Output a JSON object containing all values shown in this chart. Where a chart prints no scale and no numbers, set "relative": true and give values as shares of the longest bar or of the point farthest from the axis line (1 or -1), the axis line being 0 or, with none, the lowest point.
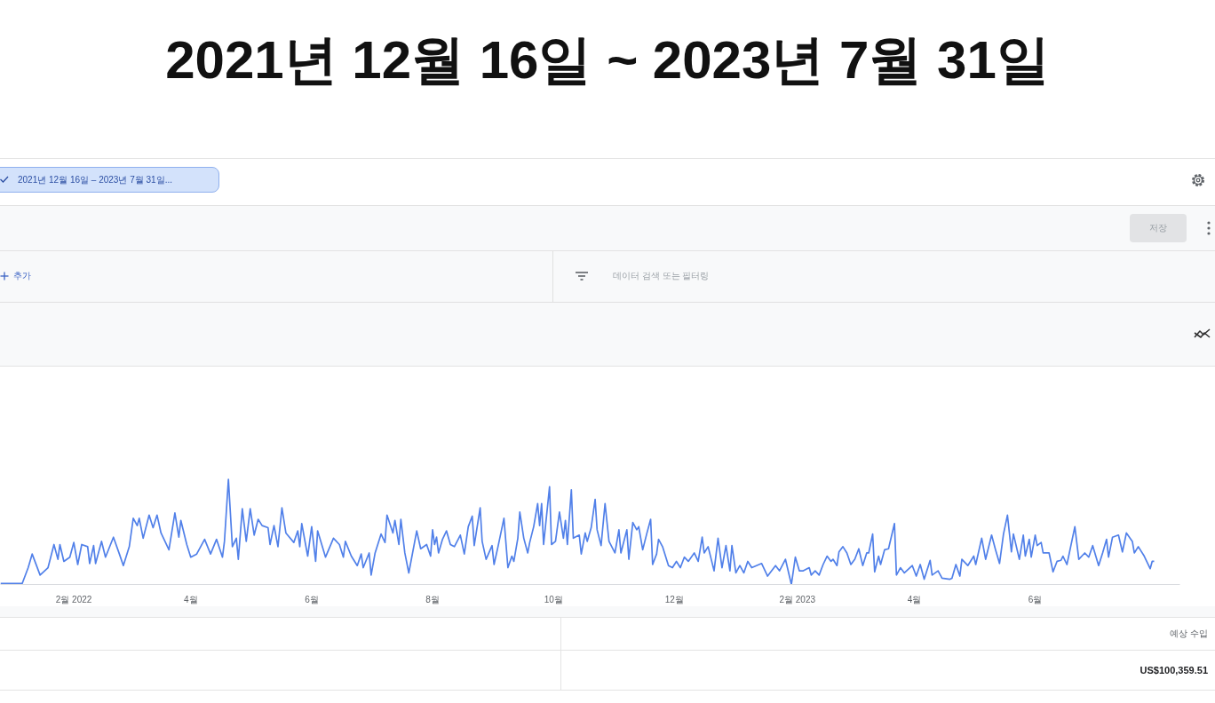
{
  "chart_data": {
    "type": "line",
    "title": "2021년 12월 16일 ~ 2023년 7월 31일",
    "relative": true,
    "color": "#5180e9",
    "tick_labels": "x",
    "xlim": [
      "2021-12-26",
      "2023-08-13"
    ],
    "xticks": [
      {
        "value": "2022-02-01",
        "label": "2월 2022"
      },
      {
        "value": "2022-04-01",
        "label": "4월"
      },
      {
        "value": "2022-06-01",
        "label": "6월"
      },
      {
        "value": "2022-08-01",
        "label": "8월"
      },
      {
        "value": "2022-10-01",
        "label": "10월"
      },
      {
        "value": "2022-12-01",
        "label": "12월"
      },
      {
        "value": "2023-02-01",
        "label": "2월 2023"
      },
      {
        "value": "2023-04-01",
        "label": "4월"
      },
      {
        "value": "2023-06-01",
        "label": "6월"
      }
    ],
    "x": [
      "2021-12-26",
      "2022-01-06",
      "2022-01-09",
      "2022-01-11",
      "2022-01-15",
      "2022-01-19",
      "2022-01-22",
      "2022-01-24",
      "2022-01-25",
      "2022-01-27",
      "2022-01-30",
      "2022-02-01",
      "2022-02-03",
      "2022-02-05",
      "2022-02-08",
      "2022-02-09",
      "2022-02-11",
      "2022-02-12",
      "2022-02-15",
      "2022-02-17",
      "2022-02-21",
      "2022-02-24",
      "2022-02-26",
      "2022-03-01",
      "2022-03-03",
      "2022-03-05",
      "2022-03-06",
      "2022-03-08",
      "2022-03-11",
      "2022-03-13",
      "2022-03-15",
      "2022-03-17",
      "2022-03-21",
      "2022-03-24",
      "2022-03-26",
      "2022-03-27",
      "2022-03-30",
      "2022-04-01",
      "2022-04-04",
      "2022-04-08",
      "2022-04-11",
      "2022-04-14",
      "2022-04-17",
      "2022-04-18",
      "2022-04-20",
      "2022-04-22",
      "2022-04-24",
      "2022-04-25",
      "2022-04-27",
      "2022-04-29",
      "2022-05-01",
      "2022-05-03",
      "2022-05-05",
      "2022-05-07",
      "2022-05-10",
      "2022-05-11",
      "2022-05-13",
      "2022-05-15",
      "2022-05-17",
      "2022-05-19",
      "2022-05-23",
      "2022-05-25",
      "2022-05-26",
      "2022-05-27",
      "2022-05-30",
      "2022-06-01",
      "2022-06-03",
      "2022-06-04",
      "2022-06-08",
      "2022-06-12",
      "2022-06-15",
      "2022-06-17",
      "2022-06-18",
      "2022-06-21",
      "2022-06-24",
      "2022-06-26",
      "2022-06-27",
      "2022-06-30",
      "2022-07-01",
      "2022-07-03",
      "2022-07-06",
      "2022-07-08",
      "2022-07-09",
      "2022-07-12",
      "2022-07-13",
      "2022-07-15",
      "2022-07-16",
      "2022-07-18",
      "2022-07-20",
      "2022-07-24",
      "2022-07-26",
      "2022-07-29",
      "2022-07-31",
      "2022-08-01",
      "2022-08-02",
      "2022-08-03",
      "2022-08-04",
      "2022-08-06",
      "2022-08-08",
      "2022-08-10",
      "2022-08-12",
      "2022-08-15",
      "2022-08-17",
      "2022-08-19",
      "2022-08-21",
      "2022-08-22",
      "2022-08-25",
      "2022-08-26",
      "2022-08-28",
      "2022-08-31",
      "2022-09-01",
      "2022-09-03",
      "2022-09-06",
      "2022-09-08",
      "2022-09-10",
      "2022-09-11",
      "2022-09-13",
      "2022-09-14",
      "2022-09-16",
      "2022-09-18",
      "2022-09-19",
      "2022-09-21",
      "2022-09-23",
      "2022-09-24",
      "2022-09-25",
      "2022-09-26",
      "2022-09-29",
      "2022-09-30",
      "2022-10-02",
      "2022-10-04",
      "2022-10-06",
      "2022-10-07",
      "2022-10-08",
      "2022-10-10",
      "2022-10-11",
      "2022-10-14",
      "2022-10-15",
      "2022-10-17",
      "2022-10-18",
      "2022-10-20",
      "2022-10-22",
      "2022-10-23",
      "2022-10-25",
      "2022-10-27",
      "2022-10-29",
      "2022-11-01",
      "2022-11-03",
      "2022-11-04",
      "2022-11-07",
      "2022-11-08",
      "2022-11-10",
      "2022-11-12",
      "2022-11-13",
      "2022-11-15",
      "2022-11-17",
      "2022-11-19",
      "2022-11-20",
      "2022-11-22",
      "2022-11-23",
      "2022-11-25",
      "2022-11-28",
      "2022-11-30",
      "2022-12-02",
      "2022-12-04",
      "2022-12-06",
      "2022-12-08",
      "2022-12-11",
      "2022-12-13",
      "2022-12-15",
      "2022-12-16",
      "2022-12-18",
      "2022-12-21",
      "2022-12-23",
      "2022-12-25",
      "2022-12-27",
      "2022-12-29",
      "2022-12-30",
      "2023-01-01",
      "2023-01-03",
      "2023-01-05",
      "2023-01-07",
      "2023-01-09",
      "2023-01-14",
      "2023-01-17",
      "2023-01-21",
      "2023-01-23",
      "2023-01-26",
      "2023-01-29",
      "2023-01-31",
      "2023-02-02",
      "2023-02-04",
      "2023-02-07",
      "2023-02-08",
      "2023-02-10",
      "2023-02-12",
      "2023-02-14",
      "2023-02-16",
      "2023-02-18",
      "2023-02-19",
      "2023-02-21",
      "2023-02-22",
      "2023-02-24",
      "2023-02-26",
      "2023-02-28",
      "2023-03-02",
      "2023-03-04",
      "2023-03-06",
      "2023-03-08",
      "2023-03-09",
      "2023-03-11",
      "2023-03-12",
      "2023-03-14",
      "2023-03-15",
      "2023-03-17",
      "2023-03-19",
      "2023-03-22",
      "2023-03-23",
      "2023-03-25",
      "2023-03-27",
      "2023-03-31",
      "2023-04-02",
      "2023-04-04",
      "2023-04-06",
      "2023-04-09",
      "2023-04-10",
      "2023-04-13",
      "2023-04-15",
      "2023-04-19",
      "2023-04-20",
      "2023-04-22",
      "2023-04-24",
      "2023-04-25",
      "2023-04-28",
      "2023-05-01",
      "2023-05-02",
      "2023-05-05",
      "2023-05-07",
      "2023-05-10",
      "2023-05-12",
      "2023-05-14",
      "2023-05-16",
      "2023-05-18",
      "2023-05-20",
      "2023-05-21",
      "2023-05-24",
      "2023-05-26",
      "2023-05-27",
      "2023-05-29",
      "2023-05-30",
      "2023-06-01",
      "2023-06-02",
      "2023-06-04",
      "2023-06-05",
      "2023-06-08",
      "2023-06-10",
      "2023-06-12",
      "2023-06-14",
      "2023-06-15",
      "2023-06-17",
      "2023-06-21",
      "2023-06-23",
      "2023-06-26",
      "2023-06-28",
      "2023-06-30",
      "2023-07-03",
      "2023-07-05",
      "2023-07-07",
      "2023-07-08",
      "2023-07-10",
      "2023-07-13",
      "2023-07-15",
      "2023-07-17",
      "2023-07-20",
      "2023-07-21",
      "2023-07-23",
      "2023-07-26",
      "2023-07-29",
      "2023-07-30",
      "2023-07-31"
    ],
    "values": [
      0.01,
      0.01,
      0.16,
      0.29,
      0.09,
      0.16,
      0.38,
      0.24,
      0.38,
      0.22,
      0.26,
      0.4,
      0.19,
      0.38,
      0.36,
      0.2,
      0.37,
      0.2,
      0.41,
      0.26,
      0.45,
      0.29,
      0.18,
      0.36,
      0.63,
      0.56,
      0.63,
      0.44,
      0.66,
      0.54,
      0.66,
      0.49,
      0.33,
      0.68,
      0.45,
      0.61,
      0.38,
      0.26,
      0.29,
      0.43,
      0.29,
      0.43,
      0.26,
      0.41,
      1,
      0.36,
      0.44,
      0.24,
      0.72,
      0.41,
      0.72,
      0.47,
      0.62,
      0.56,
      0.54,
      0.38,
      0.56,
      0.36,
      0.73,
      0.49,
      0.4,
      0.51,
      0.36,
      0.58,
      0.27,
      0.55,
      0.22,
      0.51,
      0.26,
      0.44,
      0.38,
      0.26,
      0.41,
      0.27,
      0.18,
      0.29,
      0.16,
      0.3,
      0.09,
      0.3,
      0.48,
      0.4,
      0.66,
      0.49,
      0.61,
      0.38,
      0.62,
      0.3,
      0.11,
      0.51,
      0.34,
      0.38,
      0.27,
      0.52,
      0.38,
      0.45,
      0.3,
      0.43,
      0.51,
      0.38,
      0.36,
      0.47,
      0.29,
      0.55,
      0.65,
      0.37,
      0.73,
      0.41,
      0.24,
      0.37,
      0.19,
      0.36,
      0.63,
      0.16,
      0.27,
      0.22,
      0.44,
      0.69,
      0.44,
      0.3,
      0.4,
      0.55,
      0.77,
      0.56,
      0.77,
      0.38,
      0.93,
      0.38,
      0.41,
      0.69,
      0.44,
      0.61,
      0.38,
      0.9,
      0.44,
      0.47,
      0.29,
      0.49,
      0.41,
      0.54,
      0.81,
      0.52,
      0.37,
      0.77,
      0.41,
      0.3,
      0.52,
      0.3,
      0.52,
      0.24,
      0.59,
      0.52,
      0.55,
      0.33,
      0.48,
      0.62,
      0.19,
      0.29,
      0.43,
      0.36,
      0.18,
      0.16,
      0.22,
      0.16,
      0.26,
      0.22,
      0.3,
      0.22,
      0.45,
      0.3,
      0.36,
      0.13,
      0.44,
      0.16,
      0.37,
      0.13,
      0.37,
      0.11,
      0.18,
      0.11,
      0.22,
      0.16,
      0.2,
      0.08,
      0.18,
      0.13,
      0.24,
      0,
      0.26,
      0.13,
      0.13,
      0.16,
      0.09,
      0.13,
      0.09,
      0.19,
      0.27,
      0.22,
      0.24,
      0.18,
      0.31,
      0.36,
      0.3,
      0.19,
      0.24,
      0.34,
      0.18,
      0.3,
      0.3,
      0.48,
      0.12,
      0.27,
      0.19,
      0.33,
      0.34,
      0.58,
      0.09,
      0.16,
      0.11,
      0.18,
      0.08,
      0.19,
      0.05,
      0.23,
      0.09,
      0.13,
      0.06,
      0.05,
      0.06,
      0.19,
      0.08,
      0.24,
      0.18,
      0.27,
      0.19,
      0.44,
      0.24,
      0.47,
      0.33,
      0.2,
      0.48,
      0.66,
      0.31,
      0.48,
      0.24,
      0.47,
      0.27,
      0.43,
      0.26,
      0.47,
      0.37,
      0.4,
      0.3,
      0.3,
      0.12,
      0.22,
      0.23,
      0.27,
      0.19,
      0.55,
      0.24,
      0.3,
      0.26,
      0.37,
      0.18,
      0.3,
      0.43,
      0.26,
      0.45,
      0.47,
      0.31,
      0.49,
      0.41,
      0.3,
      0.36,
      0.27,
      0.15,
      0.22,
      0.22
    ],
    "annotations": [
      "2021년 12월 16일 – 2023년 7월 31일...",
      "저장",
      "추가",
      "데이터 검색 또는 필터링",
      "예상 수입",
      "US$100,359.51"
    ]
  }
}
